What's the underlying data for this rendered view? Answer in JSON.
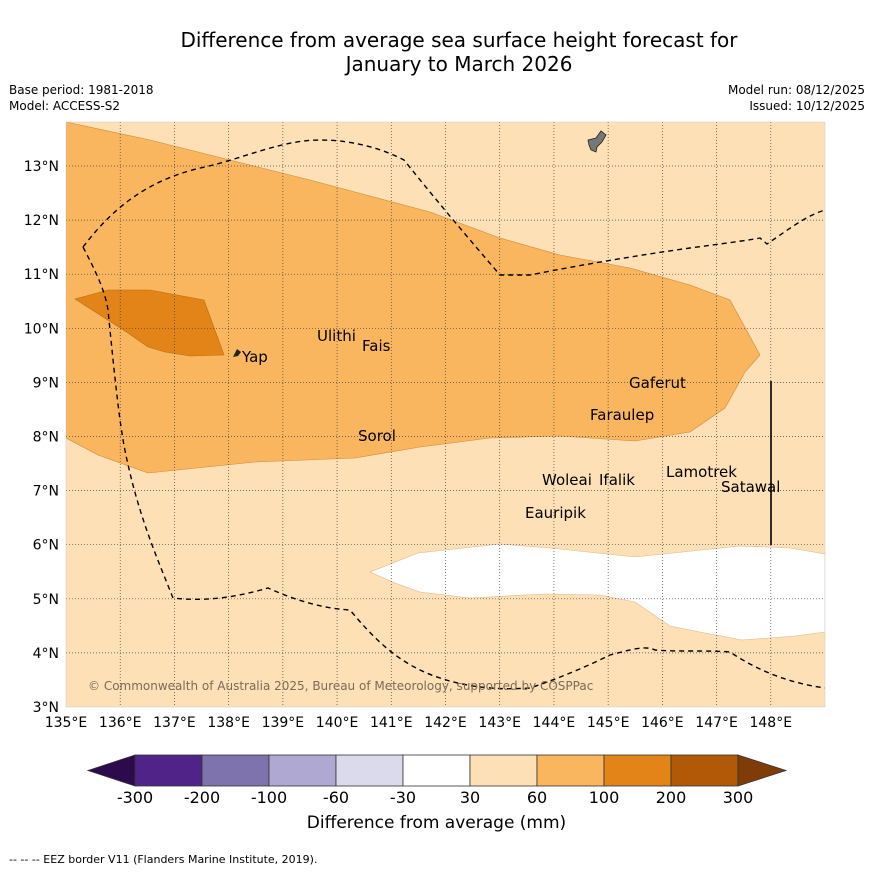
{
  "header": {
    "title_line1": "Difference from average sea surface height forecast for",
    "title_line2": "January to March 2026",
    "base_period": "Base period: 1981-2018",
    "model": "Model: ACCESS-S2",
    "model_run": "Model run: 08/12/2025",
    "issued": "Issued: 10/12/2025"
  },
  "map": {
    "lon_ticks": [
      "135°E",
      "136°E",
      "137°E",
      "138°E",
      "139°E",
      "140°E",
      "141°E",
      "142°E",
      "143°E",
      "144°E",
      "145°E",
      "146°E",
      "147°E",
      "148°E"
    ],
    "lat_ticks": [
      "3°N",
      "4°N",
      "5°N",
      "6°N",
      "7°N",
      "8°N",
      "9°N",
      "10°N",
      "11°N",
      "12°N",
      "13°N"
    ],
    "places": [
      {
        "name": "Yap"
      },
      {
        "name": "Ulithi"
      },
      {
        "name": "Fais"
      },
      {
        "name": "Gaferut"
      },
      {
        "name": "Faraulep"
      },
      {
        "name": "Sorol"
      },
      {
        "name": "Woleai"
      },
      {
        "name": "Ifalik"
      },
      {
        "name": "Lamotrek"
      },
      {
        "name": "Satawal"
      },
      {
        "name": "Eauripik"
      }
    ],
    "copyright": "© Commonwealth of Australia 2025, Bureau of Meteorology, supported by COSPPac"
  },
  "colorbar": {
    "labels": [
      "-300",
      "-200",
      "-100",
      "-60",
      "-30",
      "30",
      "60",
      "100",
      "200",
      "300"
    ],
    "colors": [
      "#2d0a4b",
      "#4f2388",
      "#7f73ae",
      "#afa8d3",
      "#dadaec",
      "#ffffff",
      "#fde0b6",
      "#f9b65f",
      "#e28418",
      "#b15907",
      "#7f3b08"
    ],
    "title": "Difference from average (mm)"
  },
  "footnote": "-- -- -- EEZ border V11 (Flanders Marine Institute, 2019)."
}
